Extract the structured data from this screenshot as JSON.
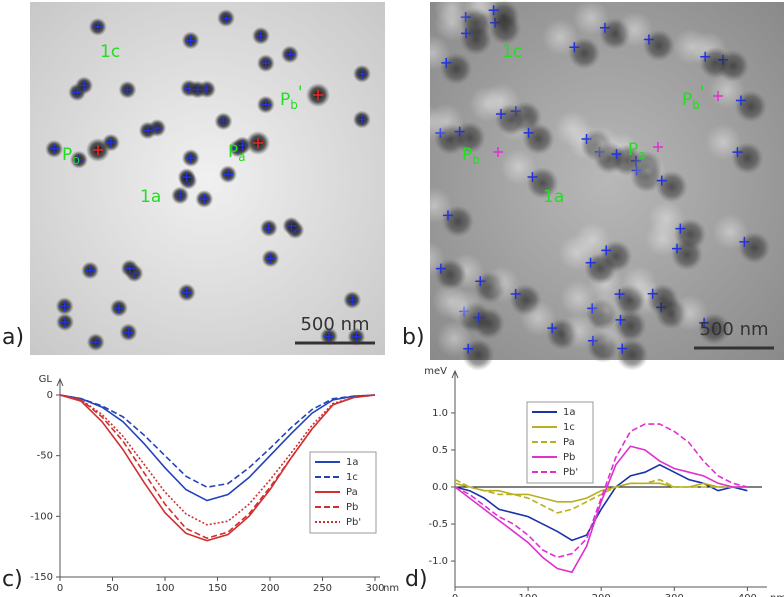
{
  "images": [
    {
      "panel_label": "a)",
      "scale_bar": "500 nm",
      "labels": [
        {
          "text": "1c"
        },
        {
          "text": "1a"
        },
        {
          "text": "P",
          "sub": "a"
        },
        {
          "text": "P",
          "sub": "b"
        },
        {
          "text": "P",
          "sub": "b",
          "mark": "'"
        }
      ]
    },
    {
      "panel_label": "b)",
      "scale_bar": "500 nm",
      "labels": [
        {
          "text": "1c"
        },
        {
          "text": "1a"
        },
        {
          "text": "P",
          "sub": "a"
        },
        {
          "text": "P",
          "sub": "b"
        },
        {
          "text": "P",
          "sub": "b",
          "mark": "'"
        }
      ]
    }
  ],
  "chart_data": [
    {
      "type": "line",
      "panel_label": "c)",
      "y_label": "GL",
      "x_label": "nm",
      "x": [
        0,
        20,
        40,
        60,
        80,
        100,
        120,
        140,
        160,
        180,
        200,
        220,
        240,
        260,
        280,
        300
      ],
      "xlim": [
        0,
        300
      ],
      "xticks": [
        0,
        50,
        100,
        150,
        200,
        250,
        300
      ],
      "ylim": [
        -150,
        0
      ],
      "yticks": [
        0,
        -50,
        -100,
        -150
      ],
      "series": [
        {
          "name": "1a",
          "color": "#2244bb",
          "dash": "solid",
          "values": [
            0,
            -3,
            -10,
            -22,
            -40,
            -60,
            -78,
            -87,
            -82,
            -68,
            -50,
            -32,
            -15,
            -4,
            -1,
            0
          ]
        },
        {
          "name": "1c",
          "color": "#2244bb",
          "dash": "dashed",
          "values": [
            0,
            -3,
            -9,
            -18,
            -33,
            -50,
            -67,
            -76,
            -73,
            -60,
            -44,
            -27,
            -12,
            -3,
            -1,
            0
          ]
        },
        {
          "name": "Pa",
          "color": "#d03030",
          "dash": "solid",
          "values": [
            0,
            -5,
            -22,
            -45,
            -72,
            -97,
            -114,
            -120,
            -115,
            -100,
            -78,
            -52,
            -28,
            -8,
            -2,
            0
          ]
        },
        {
          "name": "Pb",
          "color": "#d03030",
          "dash": "dashed",
          "values": [
            0,
            -4,
            -18,
            -38,
            -64,
            -90,
            -110,
            -118,
            -113,
            -98,
            -76,
            -52,
            -28,
            -8,
            -2,
            0
          ]
        },
        {
          "name": "Pb'",
          "color": "#d03030",
          "dash": "dotted",
          "values": [
            0,
            -4,
            -16,
            -34,
            -57,
            -80,
            -98,
            -107,
            -104,
            -90,
            -70,
            -48,
            -25,
            -7,
            -2,
            0
          ]
        }
      ]
    },
    {
      "type": "line",
      "panel_label": "d)",
      "y_label": "meV",
      "x_label": "nm",
      "zero_line": true,
      "x": [
        0,
        20,
        40,
        60,
        80,
        100,
        120,
        140,
        160,
        180,
        200,
        220,
        240,
        260,
        280,
        300,
        320,
        340,
        360,
        380,
        400
      ],
      "xlim": [
        0,
        420
      ],
      "xticks": [
        0,
        100,
        200,
        300,
        400
      ],
      "ylim": [
        -1.35,
        1.35
      ],
      "yticks": [
        {
          "value": -1,
          "label": "-1.0"
        },
        -0.5,
        {
          "value": 0,
          "label": "0.0"
        },
        0.5,
        {
          "value": 1,
          "label": "1.0"
        }
      ],
      "series": [
        {
          "name": "1a",
          "color": "#1a33aa",
          "dash": "solid",
          "values": [
            0,
            -0.05,
            -0.15,
            -0.3,
            -0.35,
            -0.4,
            -0.5,
            -0.6,
            -0.72,
            -0.65,
            -0.3,
            0,
            0.15,
            0.2,
            0.3,
            0.2,
            0.1,
            0.05,
            -0.05,
            0,
            -0.05
          ]
        },
        {
          "name": "1c",
          "color": "#b8b020",
          "dash": "solid",
          "values": [
            0.05,
            0,
            -0.05,
            -0.05,
            -0.1,
            -0.1,
            -0.15,
            -0.2,
            -0.2,
            -0.15,
            -0.05,
            0,
            0.05,
            0.05,
            0.05,
            0,
            0,
            0.05,
            0,
            0,
            0
          ]
        },
        {
          "name": "Pa",
          "color": "#b8b020",
          "dash": "dashed",
          "values": [
            0.1,
            0,
            -0.05,
            -0.1,
            -0.1,
            -0.15,
            -0.25,
            -0.35,
            -0.3,
            -0.2,
            -0.1,
            0,
            0.05,
            0.05,
            0.1,
            0,
            0,
            0,
            0,
            0,
            0
          ]
        },
        {
          "name": "Pb",
          "color": "#e030d0",
          "dash": "solid",
          "values": [
            0,
            -0.15,
            -0.3,
            -0.45,
            -0.6,
            -0.75,
            -0.95,
            -1.1,
            -1.15,
            -0.8,
            -0.2,
            0.3,
            0.55,
            0.5,
            0.35,
            0.25,
            0.2,
            0.15,
            0.05,
            0,
            0
          ]
        },
        {
          "name": "Pb'",
          "color": "#e030d0",
          "dash": "dashed",
          "values": [
            0,
            -0.1,
            -0.25,
            -0.4,
            -0.5,
            -0.65,
            -0.85,
            -0.95,
            -0.9,
            -0.7,
            -0.15,
            0.4,
            0.75,
            0.85,
            0.85,
            0.75,
            0.6,
            0.35,
            0.15,
            0.05,
            0
          ]
        }
      ]
    }
  ]
}
